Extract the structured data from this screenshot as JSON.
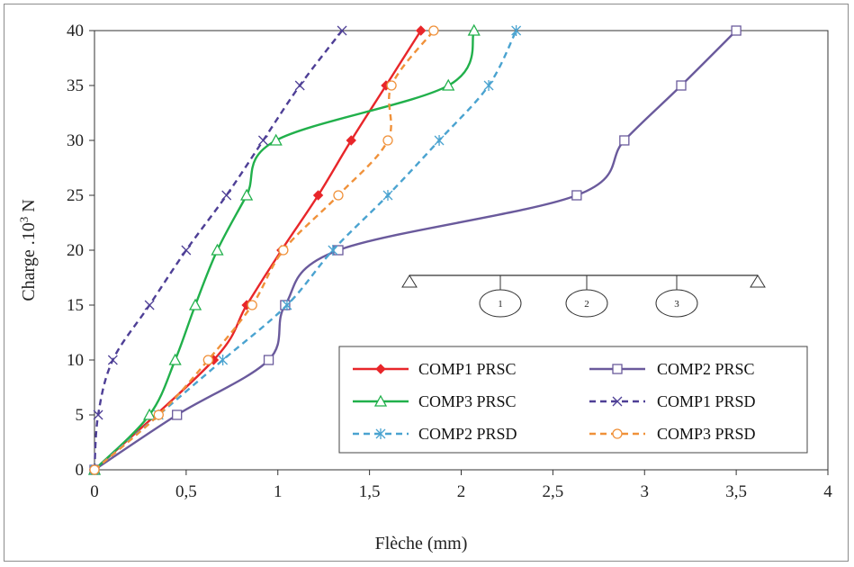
{
  "chart_data": {
    "type": "line",
    "xlabel": "Flèche (mm)",
    "ylabel_main": "Charge .10",
    "ylabel_sup": "3",
    "ylabel_unit": " N",
    "xlim": [
      0,
      4
    ],
    "ylim": [
      0,
      40
    ],
    "x_ticks": [
      "0",
      "0,5",
      "1",
      "1,5",
      "2",
      "2,5",
      "3",
      "3,5",
      "4"
    ],
    "y_ticks": [
      "0",
      "5",
      "10",
      "15",
      "20",
      "25",
      "30",
      "35",
      "40"
    ],
    "grid": false,
    "legend_position": "bottom-right",
    "series": [
      {
        "name": "COMP1 PRSC",
        "color": "#e8262a",
        "dash": "solid",
        "marker": "diamond",
        "x": [
          0,
          0.65,
          0.83,
          1.02,
          1.22,
          1.4,
          1.59,
          1.78
        ],
        "y": [
          0,
          10,
          15,
          20,
          25,
          30,
          35,
          40
        ]
      },
      {
        "name": "COMP2 PRSC",
        "color": "#6a5a9c",
        "dash": "solid",
        "marker": "square",
        "x": [
          0,
          0.45,
          0.95,
          1.04,
          1.33,
          2.63,
          2.89,
          3.2,
          3.5
        ],
        "y": [
          0,
          5,
          10,
          15,
          20,
          25,
          30,
          35,
          40
        ]
      },
      {
        "name": "COMP3 PRSC",
        "color": "#21b04b",
        "dash": "solid",
        "marker": "triangle",
        "x": [
          0,
          0.3,
          0.44,
          0.55,
          0.67,
          0.83,
          0.99,
          1.93,
          2.07
        ],
        "y": [
          0,
          5,
          10,
          15,
          20,
          25,
          30,
          35,
          40
        ]
      },
      {
        "name": "COMP1 PRSD",
        "color": "#4e3f96",
        "dash": "dashed",
        "marker": "x",
        "x": [
          0,
          0.02,
          0.1,
          0.3,
          0.5,
          0.72,
          0.92,
          1.12,
          1.35
        ],
        "y": [
          0,
          5,
          10,
          15,
          20,
          25,
          30,
          35,
          40
        ]
      },
      {
        "name": "COMP2 PRSD",
        "color": "#4aa3d0",
        "dash": "dashed",
        "marker": "star",
        "x": [
          0,
          0.35,
          0.7,
          1.05,
          1.3,
          1.6,
          1.88,
          2.15,
          2.3
        ],
        "y": [
          0,
          5,
          10,
          15,
          20,
          25,
          30,
          35,
          40
        ]
      },
      {
        "name": "COMP3 PRSD",
        "color": "#f0913a",
        "dash": "dashed",
        "marker": "circle",
        "x": [
          0,
          0.35,
          0.62,
          0.86,
          1.03,
          1.33,
          1.6,
          1.62,
          1.85
        ],
        "y": [
          0,
          5,
          10,
          15,
          20,
          25,
          30,
          35,
          40
        ]
      }
    ],
    "inset_labels": [
      "1",
      "2",
      "3"
    ]
  }
}
